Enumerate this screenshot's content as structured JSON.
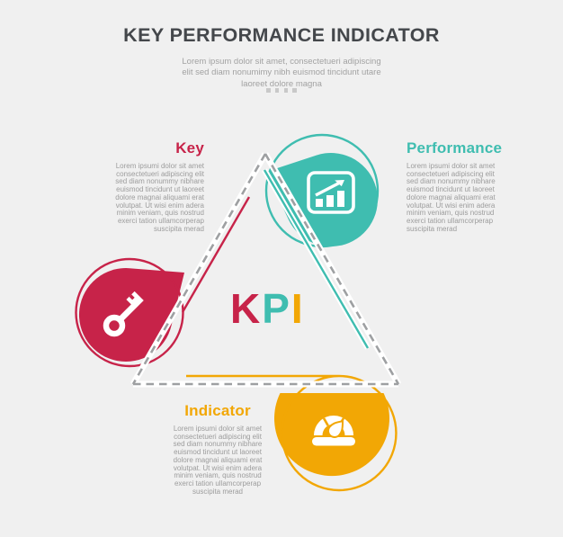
{
  "page": {
    "background": "#F0F0F0"
  },
  "header": {
    "title": "KEY PERFORMANCE INDICATOR",
    "subtitle": "Lorem ipsum dolor sit amet, consectetueri adipiscing\nelit sed diam nonumimy nibh euismod tincidunt utare\nlaoreet dolore magna",
    "dots_count": 4
  },
  "center_monogram": {
    "letters": [
      {
        "char": "K",
        "color": "#C72349"
      },
      {
        "char": "P",
        "color": "#3FBDB0"
      },
      {
        "char": "I",
        "color": "#F2A705"
      }
    ]
  },
  "sections": [
    {
      "id": "key",
      "title": "Key",
      "accent_color": "#C72349",
      "icon": "key-icon",
      "body": "Lorem ipsumi dolor sit amet\nconsectetueri adipiscing elit\nsed diam nonummy nibhare\neuismod tincidunt ut laoreet\ndolore magnai aliquami erat\nvolutpat. Ut wisi enim adera\nminim veniam, quis nostrud\nexerci tation ullamcorperap\nsuscipita merad"
    },
    {
      "id": "performance",
      "title": "Performance",
      "accent_color": "#3FBDB0",
      "icon": "chart-growth-icon",
      "body": "Lorem ipsumi dolor sit amet\nconsectetueri adipiscing elit\nsed diam nonummy nibhare\neuismod tincidunt ut laoreet\ndolore magnai aliquami erat\nvolutpat. Ut wisi enim adera\nminim veniam, quis nostrud\nexerci tation ullamcorperap\nsuscipita merad"
    },
    {
      "id": "indicator",
      "title": "Indicator",
      "accent_color": "#F2A705",
      "icon": "gauge-icon",
      "body": "Lorem ipsumi dolor sit amet\nconsectetueri adipiscing elit\nsed diam nonummy nibhare\neuismod tincidunt ut laoreet\ndolore magnai aliquami erat\nvolutpat. Ut wisi enim adera\nminim veniam, quis nostrud\nexerci tation ullamcorperap\nsuscipita merad"
    }
  ],
  "colors": {
    "red": "#C72349",
    "teal": "#3FBDB0",
    "orange": "#F2A705",
    "dashed_line": "#9EA0A2",
    "title_text": "#44474B",
    "body_text": "#9C9C9C",
    "dot_gray": "#C9C9C9"
  }
}
